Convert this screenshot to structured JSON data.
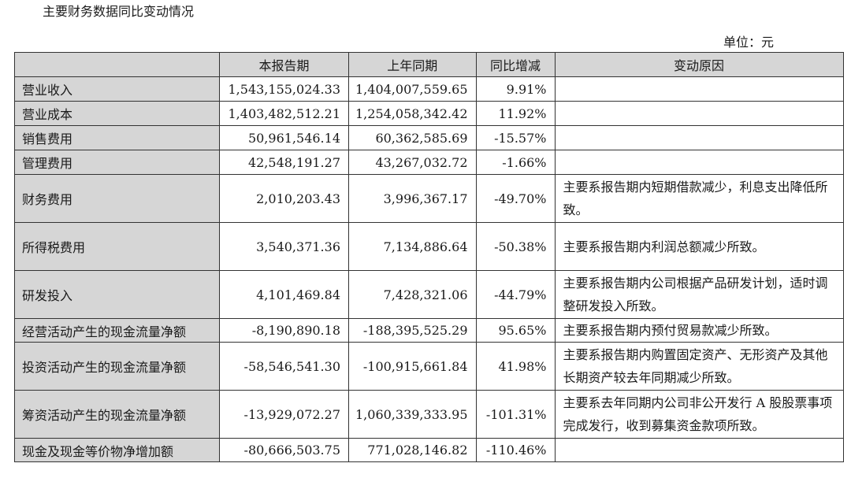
{
  "title": "主要财务数据同比变动情况",
  "unit": "单位：元",
  "side_icon": "table-icon",
  "table": {
    "headers": [
      "",
      "本报告期",
      "上年同期",
      "同比增减",
      "变动原因"
    ],
    "rows": [
      {
        "label": "营业收入",
        "current": "1,543,155,024.33",
        "prior": "1,404,007,559.65",
        "change": "9.91%",
        "reason": ""
      },
      {
        "label": "营业成本",
        "current": "1,403,482,512.21",
        "prior": "1,254,058,342.42",
        "change": "11.92%",
        "reason": ""
      },
      {
        "label": "销售费用",
        "current": "50,961,546.14",
        "prior": "60,362,585.69",
        "change": "-15.57%",
        "reason": ""
      },
      {
        "label": "管理费用",
        "current": "42,548,191.27",
        "prior": "43,267,032.72",
        "change": "-1.66%",
        "reason": ""
      },
      {
        "label": "财务费用",
        "current": "2,010,203.43",
        "prior": "3,996,367.17",
        "change": "-49.70%",
        "reason": "主要系报告期内短期借款减少，利息支出降低所致。"
      },
      {
        "label": "所得税费用",
        "current": "3,540,371.36",
        "prior": "7,134,886.64",
        "change": "-50.38%",
        "reason": "主要系报告期内利润总额减少所致。"
      },
      {
        "label": "研发投入",
        "current": "4,101,469.84",
        "prior": "7,428,321.06",
        "change": "-44.79%",
        "reason": "主要系报告期内公司根据产品研发计划，适时调整研发投入所致。"
      },
      {
        "label": "经营活动产生的现金流量净额",
        "current": "-8,190,890.18",
        "prior": "-188,395,525.29",
        "change": "95.65%",
        "reason": "主要系报告期内预付贸易款减少所致。"
      },
      {
        "label": "投资活动产生的现金流量净额",
        "current": "-58,546,541.30",
        "prior": "-100,915,661.84",
        "change": "41.98%",
        "reason": "主要系报告期内购置固定资产、无形资产及其他长期资产较去年同期减少所致。"
      },
      {
        "label": "筹资活动产生的现金流量净额",
        "current": "-13,929,072.27",
        "prior": "1,060,339,333.95",
        "change": "-101.31%",
        "reason": "主要系去年同期内公司非公开发行 A 股股票事项完成发行，收到募集资金款项所致。"
      },
      {
        "label": "现金及现金等价物净增加额",
        "current": "-80,666,503.75",
        "prior": "771,028,146.82",
        "change": "-110.46%",
        "reason": ""
      }
    ]
  }
}
